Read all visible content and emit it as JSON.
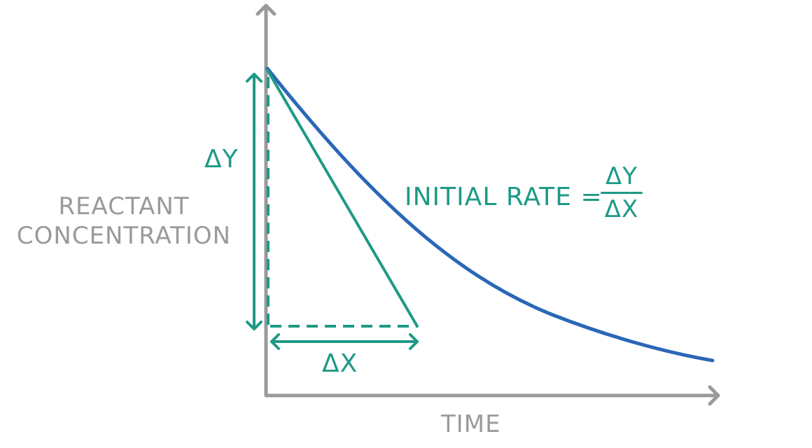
{
  "labels": {
    "y_axis_line1": "REACTANT",
    "y_axis_line2": "CONCENTRATION",
    "x_axis": "TIME",
    "delta_y": "ΔY",
    "delta_x": "ΔX",
    "rate_text": "INITIAL RATE =",
    "rate_numerator": "ΔY",
    "rate_denominator": "ΔX"
  },
  "colors": {
    "axis": "#9a9a9a",
    "curve": "#2a67b8",
    "annotation": "#1e9a86"
  },
  "icons": [
    "arrow-head-icon"
  ]
}
